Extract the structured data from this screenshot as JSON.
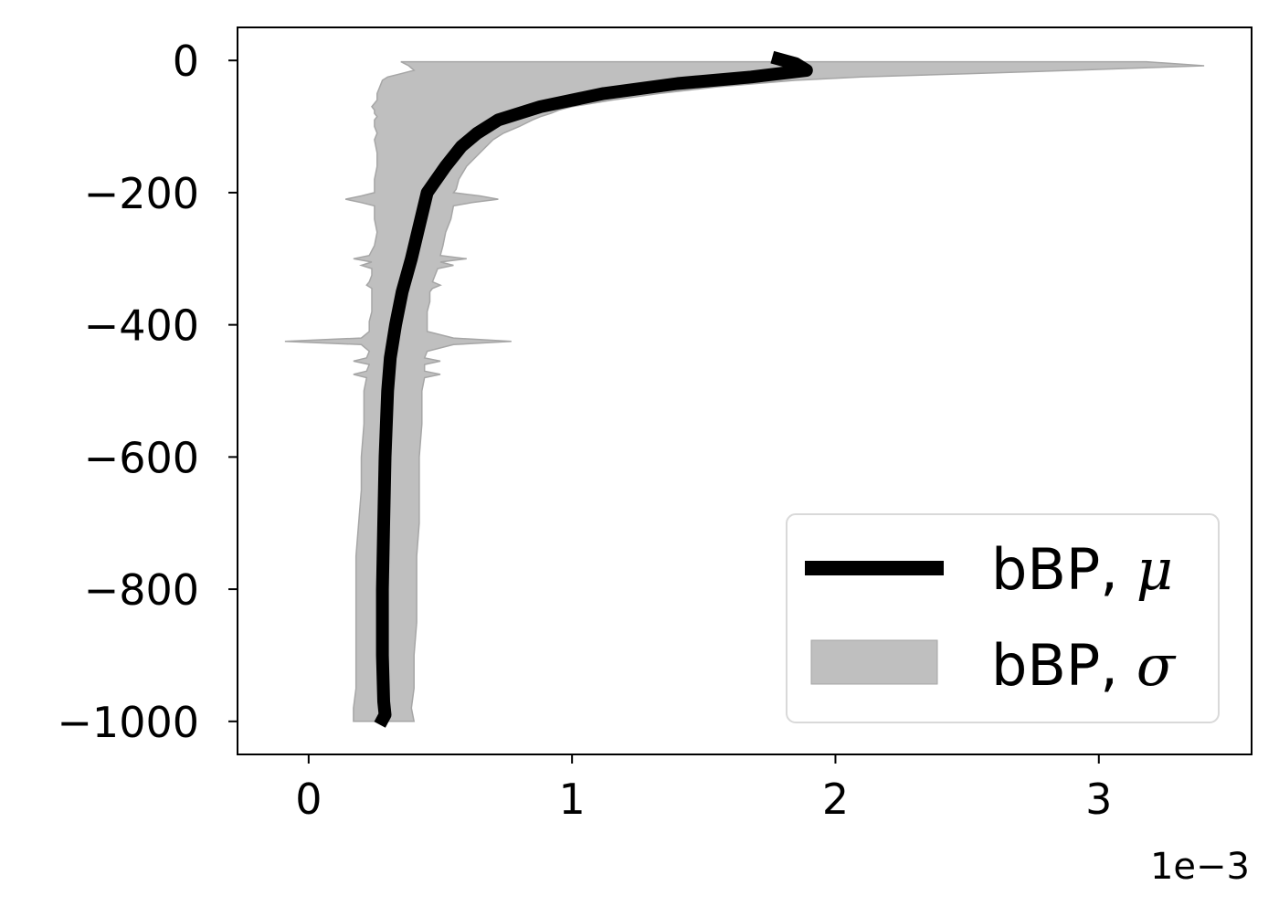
{
  "chart_data": {
    "type": "line",
    "title": "",
    "xlabel": "",
    "ylabel": "",
    "x_offset_label": "1e−3",
    "x_scale": 0.001,
    "xlim": [
      -0.27,
      3.58
    ],
    "ylim": [
      -1050,
      50
    ],
    "x_ticks": [
      0,
      1,
      2,
      3
    ],
    "x_tick_labels": [
      "0",
      "1",
      "2",
      "3"
    ],
    "y_ticks": [
      0,
      -200,
      -400,
      -600,
      -800,
      -1000
    ],
    "y_tick_labels": [
      "0",
      "−200",
      "−400",
      "−600",
      "−800",
      "−1000"
    ],
    "grid": false,
    "legend_position": "lower-right",
    "series": [
      {
        "name": "bBP, μ",
        "legend_base": "bBP, ",
        "legend_symbol": "μ",
        "kind": "line",
        "color": "#000000",
        "y": [
          5,
          -5,
          -15,
          -25,
          -35,
          -50,
          -70,
          -90,
          -110,
          -130,
          -160,
          -200,
          -250,
          -300,
          -350,
          -400,
          -450,
          -500,
          -600,
          -700,
          -800,
          -900,
          -970,
          -990,
          -1005
        ],
        "x": [
          1.76,
          1.85,
          1.89,
          1.68,
          1.4,
          1.12,
          0.88,
          0.72,
          0.64,
          0.58,
          0.52,
          0.45,
          0.42,
          0.39,
          0.355,
          0.33,
          0.31,
          0.3,
          0.29,
          0.285,
          0.28,
          0.28,
          0.285,
          0.29,
          0.27
        ]
      },
      {
        "name": "bBP, σ",
        "legend_base": "bBP, ",
        "legend_symbol": "σ",
        "kind": "band",
        "color": "#bfbfbf",
        "edge_color": "#a6a6a6",
        "y": [
          -2,
          -8,
          -15,
          -20,
          -25,
          -30,
          -40,
          -50,
          -60,
          -70,
          -75,
          -80,
          -85,
          -90,
          -100,
          -110,
          -120,
          -140,
          -160,
          -180,
          -195,
          -200,
          -205,
          -210,
          -215,
          -220,
          -240,
          -260,
          -280,
          -295,
          -300,
          -305,
          -310,
          -315,
          -325,
          -335,
          -340,
          -345,
          -350,
          -365,
          -380,
          -395,
          -410,
          -420,
          -425,
          -430,
          -440,
          -450,
          -455,
          -460,
          -470,
          -475,
          -480,
          -500,
          -550,
          -600,
          -650,
          -700,
          -750,
          -800,
          -850,
          -900,
          -950,
          -980,
          -1000
        ],
        "lower": [
          0.35,
          0.38,
          0.4,
          0.35,
          0.3,
          0.28,
          0.27,
          0.26,
          0.26,
          0.24,
          0.25,
          0.25,
          0.26,
          0.25,
          0.25,
          0.26,
          0.25,
          0.26,
          0.26,
          0.25,
          0.25,
          0.25,
          0.2,
          0.14,
          0.2,
          0.25,
          0.25,
          0.26,
          0.25,
          0.23,
          0.17,
          0.24,
          0.2,
          0.24,
          0.24,
          0.23,
          0.22,
          0.24,
          0.24,
          0.24,
          0.24,
          0.23,
          0.23,
          0.2,
          -0.09,
          0.2,
          0.23,
          0.22,
          0.17,
          0.23,
          0.22,
          0.17,
          0.22,
          0.21,
          0.21,
          0.2,
          0.2,
          0.19,
          0.18,
          0.18,
          0.18,
          0.18,
          0.18,
          0.17,
          0.17
        ],
        "upper": [
          3.18,
          3.4,
          2.9,
          2.5,
          2.1,
          1.85,
          1.55,
          1.33,
          1.15,
          1.0,
          0.95,
          0.92,
          0.88,
          0.85,
          0.8,
          0.74,
          0.7,
          0.65,
          0.6,
          0.57,
          0.56,
          0.55,
          0.65,
          0.72,
          0.62,
          0.55,
          0.54,
          0.52,
          0.51,
          0.5,
          0.6,
          0.5,
          0.55,
          0.49,
          0.48,
          0.47,
          0.5,
          0.47,
          0.46,
          0.46,
          0.45,
          0.45,
          0.45,
          0.55,
          0.77,
          0.55,
          0.45,
          0.44,
          0.5,
          0.44,
          0.44,
          0.5,
          0.44,
          0.43,
          0.43,
          0.42,
          0.42,
          0.42,
          0.41,
          0.41,
          0.41,
          0.4,
          0.4,
          0.39,
          0.4
        ]
      }
    ]
  }
}
